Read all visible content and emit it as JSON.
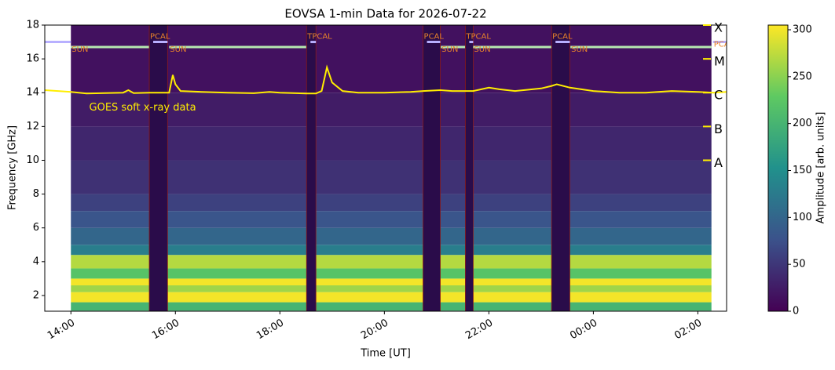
{
  "chart_data": {
    "type": "spectrogram",
    "title": "EOVSA 1-min Data for 2026-07-22",
    "xlabel": "Time [UT]",
    "ylabel": "Frequency [GHz]",
    "xlim": [
      13.5,
      26.55
    ],
    "xticks": [
      {
        "value": 14,
        "label": "14:00"
      },
      {
        "value": 16,
        "label": "16:00"
      },
      {
        "value": 18,
        "label": "18:00"
      },
      {
        "value": 20,
        "label": "20:00"
      },
      {
        "value": 22,
        "label": "22:00"
      },
      {
        "value": 24,
        "label": "00:00"
      },
      {
        "value": 26,
        "label": "02:00"
      }
    ],
    "ylim": [
      1.07,
      18
    ],
    "yticks": [
      2,
      4,
      6,
      8,
      10,
      12,
      14,
      16,
      18
    ],
    "heatmap": {
      "time_range": [
        14.0,
        26.26
      ],
      "bins": [
        1.1,
        1.6,
        2.2,
        2.6,
        3.0,
        3.6,
        4.4,
        5.0,
        6.0,
        7.0,
        8.0,
        10.0,
        12.0,
        14.0,
        18.0
      ],
      "values": [
        200,
        300,
        260,
        300,
        220,
        270,
        130,
        100,
        80,
        60,
        45,
        35,
        25,
        15
      ]
    },
    "colormap": [
      "#440154",
      "#3b528b",
      "#21918c",
      "#5ec962",
      "#fde725"
    ],
    "clim": [
      0,
      305
    ],
    "cticks": [
      0,
      50,
      100,
      150,
      200,
      250,
      300
    ],
    "colorbar_label": "Amplitude [arb. units]",
    "segments": [
      {
        "label": "SUN",
        "start": 14.0,
        "end": 15.5,
        "level": 16.7,
        "color": "#b5e8b0"
      },
      {
        "label": "PCAL",
        "start": 15.5,
        "end": 15.85,
        "level": 17.0,
        "color": "#b8b0ff",
        "fill": "#2a0c4a"
      },
      {
        "label": "SUN",
        "start": 15.88,
        "end": 18.51,
        "level": 16.7,
        "color": "#b5e8b0"
      },
      {
        "label": "TPCAL",
        "start": 18.51,
        "end": 18.69,
        "level": 17.0,
        "color": "#b8b0ff",
        "fill": "#2a0c4a"
      },
      {
        "label": "PCAL",
        "start": 20.74,
        "end": 21.07,
        "level": 17.0,
        "color": "#b8b0ff",
        "fill": "#2a0c4a"
      },
      {
        "label": "SUN",
        "start": 21.08,
        "end": 21.55,
        "level": 16.7,
        "color": "#b5e8b0"
      },
      {
        "label": "TPCAL",
        "start": 21.55,
        "end": 21.7,
        "level": 17.0,
        "color": "#b8b0ff",
        "fill": "#2a0c4a"
      },
      {
        "label": "SUN",
        "start": 21.7,
        "end": 23.2,
        "level": 16.7,
        "color": "#b5e8b0"
      },
      {
        "label": "PCAL",
        "start": 23.2,
        "end": 23.55,
        "level": 17.0,
        "color": "#b8b0ff",
        "fill": "#2a0c4a"
      },
      {
        "label": "SUN",
        "start": 23.56,
        "end": 26.26,
        "level": 16.7,
        "color": "#b5e8b0"
      },
      {
        "label": "PCAL",
        "start": 26.29,
        "end": 26.55,
        "level": 17.0,
        "color": "#b8b0ff"
      }
    ],
    "goes": {
      "name": "GOES soft x-ray data",
      "color": "#ffee00",
      "x": [
        13.5,
        14.0,
        14.3,
        15.0,
        15.1,
        15.2,
        15.5,
        15.88,
        15.95,
        16.0,
        16.1,
        16.5,
        17.0,
        17.5,
        17.8,
        18.0,
        18.5,
        18.69,
        18.8,
        18.9,
        19.0,
        19.2,
        19.5,
        20.0,
        20.5,
        20.74,
        21.07,
        21.3,
        21.55,
        21.7,
        22.0,
        22.2,
        22.5,
        23.0,
        23.2,
        23.3,
        23.55,
        24.0,
        24.5,
        25.0,
        25.5,
        26.0,
        26.3,
        26.55
      ],
      "values": [
        14.15,
        14.05,
        13.95,
        14.0,
        14.15,
        13.98,
        14.0,
        14.0,
        15.05,
        14.5,
        14.1,
        14.05,
        14.0,
        13.97,
        14.05,
        14.0,
        13.95,
        13.95,
        14.1,
        15.5,
        14.6,
        14.1,
        14.0,
        14.0,
        14.05,
        14.1,
        14.15,
        14.1,
        14.1,
        14.1,
        14.3,
        14.2,
        14.1,
        14.25,
        14.4,
        14.5,
        14.3,
        14.1,
        14.0,
        14.0,
        14.1,
        14.05,
        14.0,
        14.05
      ],
      "levels": [
        {
          "value": 10,
          "label": "A"
        },
        {
          "value": 12,
          "label": "B"
        },
        {
          "value": 14,
          "label": "C"
        },
        {
          "value": 16,
          "label": "M"
        },
        {
          "value": 18,
          "label": "X"
        }
      ],
      "annotation_x": 14.35,
      "annotation_y": 13.1
    }
  }
}
